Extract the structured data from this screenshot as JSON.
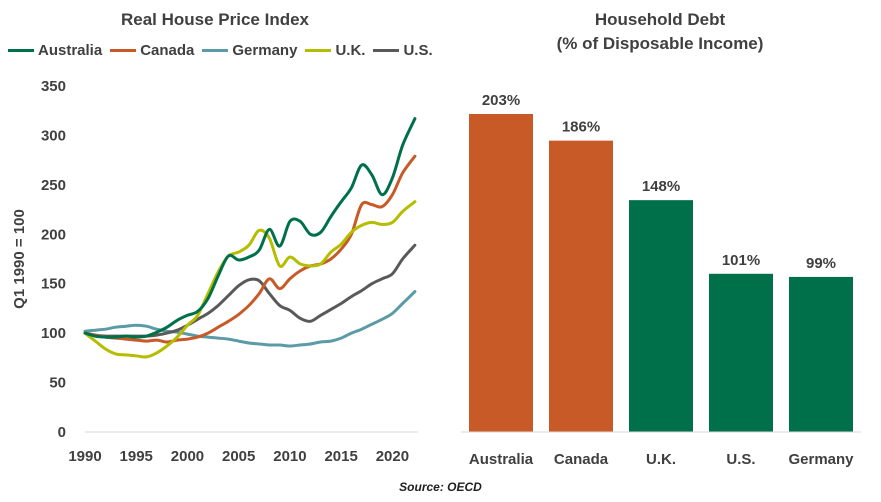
{
  "source": "Source: OECD",
  "chart_data": [
    {
      "type": "line",
      "title": "Real House Price Index",
      "ylabel": "Q1 1990 = 100",
      "xlabel": "",
      "xlim": [
        1990,
        2022.5
      ],
      "ylim": [
        0,
        350
      ],
      "xticks": [
        1990,
        1995,
        2000,
        2005,
        2010,
        2015,
        2020
      ],
      "yticks": [
        0,
        50,
        100,
        150,
        200,
        250,
        300,
        350
      ],
      "grid": false,
      "legend": "top",
      "series": [
        {
          "name": "Australia",
          "color": "#00704a",
          "points": [
            [
              1990,
              100
            ],
            [
              1991,
              97
            ],
            [
              1992,
              96
            ],
            [
              1993,
              96
            ],
            [
              1994,
              97
            ],
            [
              1995,
              96
            ],
            [
              1996,
              97
            ],
            [
              1997,
              101
            ],
            [
              1998,
              106
            ],
            [
              1999,
              113
            ],
            [
              2000,
              118
            ],
            [
              2001,
              122
            ],
            [
              2002,
              135
            ],
            [
              2003,
              158
            ],
            [
              2004,
              178
            ],
            [
              2005,
              174
            ],
            [
              2006,
              177
            ],
            [
              2007,
              184
            ],
            [
              2008,
              205
            ],
            [
              2009,
              188
            ],
            [
              2010,
              213
            ],
            [
              2011,
              213
            ],
            [
              2012,
              200
            ],
            [
              2013,
              202
            ],
            [
              2014,
              218
            ],
            [
              2015,
              233
            ],
            [
              2016,
              247
            ],
            [
              2017,
              270
            ],
            [
              2018,
              260
            ],
            [
              2019,
              240
            ],
            [
              2020,
              257
            ],
            [
              2021,
              290
            ],
            [
              2022.2,
              317
            ]
          ]
        },
        {
          "name": "Canada",
          "color": "#c85a28",
          "points": [
            [
              1990,
              100
            ],
            [
              1991,
              98
            ],
            [
              1992,
              96
            ],
            [
              1993,
              95
            ],
            [
              1994,
              94
            ],
            [
              1995,
              93
            ],
            [
              1996,
              92
            ],
            [
              1997,
              93
            ],
            [
              1998,
              91
            ],
            [
              1999,
              93
            ],
            [
              2000,
              94
            ],
            [
              2001,
              96
            ],
            [
              2002,
              100
            ],
            [
              2003,
              106
            ],
            [
              2004,
              112
            ],
            [
              2005,
              119
            ],
            [
              2006,
              128
            ],
            [
              2007,
              140
            ],
            [
              2008,
              155
            ],
            [
              2009,
              145
            ],
            [
              2010,
              155
            ],
            [
              2011,
              163
            ],
            [
              2012,
              168
            ],
            [
              2013,
              170
            ],
            [
              2014,
              175
            ],
            [
              2015,
              185
            ],
            [
              2016,
              200
            ],
            [
              2017,
              230
            ],
            [
              2018,
              230
            ],
            [
              2019,
              228
            ],
            [
              2020,
              240
            ],
            [
              2021,
              262
            ],
            [
              2022.2,
              279
            ]
          ]
        },
        {
          "name": "Germany",
          "color": "#5b9aa7",
          "points": [
            [
              1990,
              102
            ],
            [
              1991,
              103
            ],
            [
              1992,
              104
            ],
            [
              1993,
              106
            ],
            [
              1994,
              107
            ],
            [
              1995,
              108
            ],
            [
              1996,
              107
            ],
            [
              1997,
              104
            ],
            [
              1998,
              102
            ],
            [
              1999,
              101
            ],
            [
              2000,
              99
            ],
            [
              2001,
              97
            ],
            [
              2002,
              96
            ],
            [
              2003,
              95
            ],
            [
              2004,
              94
            ],
            [
              2005,
              92
            ],
            [
              2006,
              90
            ],
            [
              2007,
              89
            ],
            [
              2008,
              88
            ],
            [
              2009,
              88
            ],
            [
              2010,
              87
            ],
            [
              2011,
              88
            ],
            [
              2012,
              89
            ],
            [
              2013,
              91
            ],
            [
              2014,
              92
            ],
            [
              2015,
              95
            ],
            [
              2016,
              100
            ],
            [
              2017,
              104
            ],
            [
              2018,
              109
            ],
            [
              2019,
              114
            ],
            [
              2020,
              120
            ],
            [
              2021,
              130
            ],
            [
              2022.2,
              142
            ]
          ]
        },
        {
          "name": "U.K.",
          "color": "#b5bd00",
          "points": [
            [
              1990,
              100
            ],
            [
              1991,
              92
            ],
            [
              1992,
              84
            ],
            [
              1993,
              79
            ],
            [
              1994,
              78
            ],
            [
              1995,
              77
            ],
            [
              1996,
              76
            ],
            [
              1997,
              80
            ],
            [
              1998,
              87
            ],
            [
              1999,
              96
            ],
            [
              2000,
              108
            ],
            [
              2001,
              118
            ],
            [
              2002,
              140
            ],
            [
              2003,
              162
            ],
            [
              2004,
              178
            ],
            [
              2005,
              182
            ],
            [
              2006,
              189
            ],
            [
              2007,
              204
            ],
            [
              2008,
              196
            ],
            [
              2009,
              168
            ],
            [
              2010,
              177
            ],
            [
              2011,
              170
            ],
            [
              2012,
              168
            ],
            [
              2013,
              170
            ],
            [
              2014,
              182
            ],
            [
              2015,
              190
            ],
            [
              2016,
              202
            ],
            [
              2017,
              209
            ],
            [
              2018,
              212
            ],
            [
              2019,
              210
            ],
            [
              2020,
              212
            ],
            [
              2021,
              223
            ],
            [
              2022.2,
              233
            ]
          ]
        },
        {
          "name": "U.S.",
          "color": "#595959",
          "points": [
            [
              1990,
              100
            ],
            [
              1991,
              98
            ],
            [
              1992,
              97
            ],
            [
              1993,
              97
            ],
            [
              1994,
              97
            ],
            [
              1995,
              97
            ],
            [
              1996,
              97
            ],
            [
              1997,
              98
            ],
            [
              1998,
              100
            ],
            [
              1999,
              103
            ],
            [
              2000,
              108
            ],
            [
              2001,
              114
            ],
            [
              2002,
              120
            ],
            [
              2003,
              128
            ],
            [
              2004,
              138
            ],
            [
              2005,
              148
            ],
            [
              2006,
              154
            ],
            [
              2007,
              153
            ],
            [
              2008,
              140
            ],
            [
              2009,
              128
            ],
            [
              2010,
              123
            ],
            [
              2011,
              115
            ],
            [
              2012,
              112
            ],
            [
              2013,
              118
            ],
            [
              2014,
              124
            ],
            [
              2015,
              130
            ],
            [
              2016,
              137
            ],
            [
              2017,
              143
            ],
            [
              2018,
              150
            ],
            [
              2019,
              155
            ],
            [
              2020,
              160
            ],
            [
              2021,
              175
            ],
            [
              2022.2,
              189
            ]
          ]
        }
      ]
    },
    {
      "type": "bar",
      "title": "Household Debt",
      "subtitle": "(% of Disposable Income)",
      "xlabel": "",
      "ylabel": "",
      "ylim": [
        0,
        230
      ],
      "grid": false,
      "categories": [
        "Australia",
        "Canada",
        "U.K.",
        "U.S.",
        "Germany"
      ],
      "values": [
        203,
        186,
        148,
        101,
        99
      ],
      "labels": [
        "203%",
        "186%",
        "148%",
        "101%",
        "99%"
      ],
      "colors": [
        "#c85a28",
        "#c85a28",
        "#00704a",
        "#00704a",
        "#00704a"
      ]
    }
  ]
}
